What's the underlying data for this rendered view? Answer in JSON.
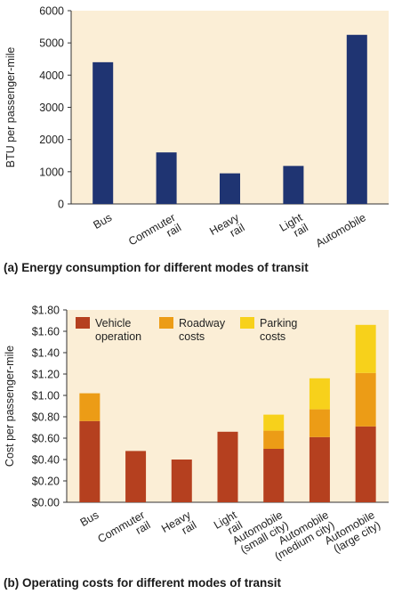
{
  "chart_data": [
    {
      "type": "bar",
      "title": "(a) Energy consumption for different modes of transit",
      "ylabel": "BTU per passenger-mile",
      "ylim": [
        0,
        6000
      ],
      "yticks": [
        "0",
        "1000",
        "2000",
        "3000",
        "4000",
        "5000",
        "6000"
      ],
      "categories": [
        "Bus",
        "Commuter rail",
        "Heavy rail",
        "Light rail",
        "Automobile"
      ],
      "category_lines": [
        [
          "Bus"
        ],
        [
          "Commuter",
          "rail"
        ],
        [
          "Heavy",
          "rail"
        ],
        [
          "Light",
          "rail"
        ],
        [
          "Automobile"
        ]
      ],
      "values": [
        4400,
        1600,
        950,
        1180,
        5250
      ],
      "color": "#1f3472",
      "background": "#fbeed6",
      "grid": false
    },
    {
      "type": "bar",
      "stacked": true,
      "title": "(b) Operating costs for different modes of transit",
      "ylabel": "Cost per passenger-mile",
      "ylim": [
        0,
        1.8
      ],
      "yticks": [
        "$0.00",
        "$0.20",
        "$0.40",
        "$0.60",
        "$0.80",
        "$1.00",
        "$1.20",
        "$1.40",
        "$1.60",
        "$1.80"
      ],
      "categories": [
        "Bus",
        "Commuter rail",
        "Heavy rail",
        "Light rail",
        "Automobile (small city)",
        "Automobile (medium city)",
        "Automobile (large city)"
      ],
      "category_lines": [
        [
          "Bus"
        ],
        [
          "Commuter",
          "rail"
        ],
        [
          "Heavy",
          "rail"
        ],
        [
          "Light",
          "rail"
        ],
        [
          "Automobile",
          "(small city)"
        ],
        [
          "Automobile",
          "(medium city)"
        ],
        [
          "Automobile",
          "(large city)"
        ]
      ],
      "series": [
        {
          "name": "Vehicle operation",
          "legend_lines": [
            "Vehicle",
            "operation"
          ],
          "color": "#b5401f",
          "values": [
            0.76,
            0.48,
            0.4,
            0.66,
            0.5,
            0.61,
            0.71
          ]
        },
        {
          "name": "Roadway costs",
          "legend_lines": [
            "Roadway",
            "costs"
          ],
          "color": "#ec9c16",
          "values": [
            0.26,
            0.0,
            0.0,
            0.0,
            0.17,
            0.26,
            0.5
          ]
        },
        {
          "name": "Parking costs",
          "legend_lines": [
            "Parking",
            "costs"
          ],
          "color": "#f7d11b",
          "values": [
            0.0,
            0.0,
            0.0,
            0.0,
            0.15,
            0.29,
            0.45
          ]
        }
      ],
      "background": "#fbeed6",
      "legend": "top-left",
      "grid": false
    }
  ]
}
